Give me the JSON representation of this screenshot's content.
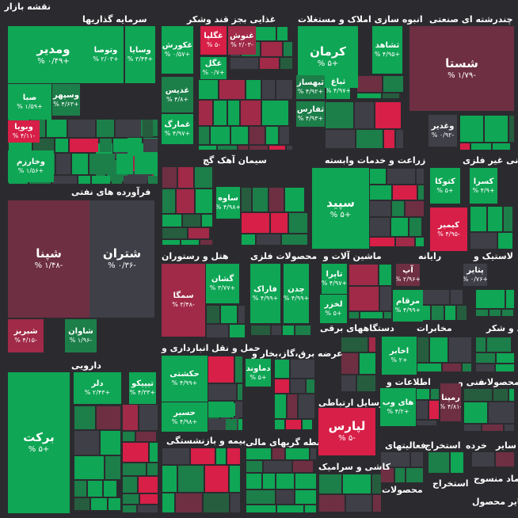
{
  "title": "نقشه بازار",
  "colors": {
    "background": "#2b2b2f",
    "strong_green": "#0fa655",
    "mid_green": "#1c7e49",
    "dark_green": "#255d3e",
    "neutral": "#3f3f47",
    "strong_red": "#d71f47",
    "mid_red": "#a02a47",
    "dark_red": "#6e2f42"
  },
  "sectors": [
    {
      "key": "investment",
      "name": "سرمایه گذاریها"
    },
    {
      "key": "food",
      "name": "غذایی بجز قند وشکر"
    },
    {
      "key": "realestate",
      "name": "انبوه سازی املاک و مستغلات"
    },
    {
      "key": "multi",
      "name": "چندرشته ای صنعتی"
    },
    {
      "key": "oil",
      "name": "فرآورده های نفتی"
    },
    {
      "key": "cement",
      "name": "سیمان آهک گچ"
    },
    {
      "key": "agri",
      "name": "زراعت و خدمات وابسته"
    },
    {
      "key": "nonmetal",
      "name": "کانی غیر فلزی"
    },
    {
      "key": "hotel",
      "name": "هتل و رستوران"
    },
    {
      "key": "metal",
      "name": "محصولات فلزی"
    },
    {
      "key": "machinery",
      "name": "ماشین آلات و"
    },
    {
      "key": "computer",
      "name": "رایانه"
    },
    {
      "key": "rubber",
      "name": "لاستیک و"
    },
    {
      "key": "transport",
      "name": "حمل و نقل انبارداری و"
    },
    {
      "key": "electric",
      "name": "دستگاههای برقی"
    },
    {
      "key": "telecom",
      "name": "مخابرات"
    },
    {
      "key": "sugar",
      "name": "قند و شکر"
    },
    {
      "key": "pharma",
      "name": "دارویی"
    },
    {
      "key": "utility",
      "name": "عرضه برق،گاز،بخار و"
    },
    {
      "key": "info",
      "name": "اطلاعات و"
    },
    {
      "key": "tech",
      "name": "فنی و"
    },
    {
      "key": "products",
      "name": "محصولات"
    },
    {
      "key": "comm",
      "name": "وسایل ارتباطی"
    },
    {
      "key": "insurance",
      "name": "بیمه و بازنشستگی"
    },
    {
      "key": "finance",
      "name": "واسطه گریهای مالی"
    },
    {
      "key": "activities",
      "name": "فعالیتهای"
    },
    {
      "key": "extract",
      "name": "استخراج"
    },
    {
      "key": "retail",
      "name": "خرده"
    },
    {
      "key": "other",
      "name": "سایر"
    },
    {
      "key": "tile",
      "name": "کاشی و سرامیک"
    },
    {
      "key": "products2",
      "name": "محصولات"
    },
    {
      "key": "extract2",
      "name": "استخراج"
    },
    {
      "key": "textile",
      "name": "چاپ پیماد منسوج"
    },
    {
      "key": "sai",
      "name": "کاغذ سایر محصول"
    }
  ],
  "tiles": [
    {
      "name": "ومدیر",
      "pct": "%‎ ۰/۴۹+"
    },
    {
      "name": "وتوصا",
      "pct": "%‎ ۲/۰۳+"
    },
    {
      "name": "وسایا",
      "pct": "%‎ ۳/۴۴+"
    },
    {
      "name": "وسپهر",
      "pct": "%‎ ۴/۶۳+"
    },
    {
      "name": "صبا",
      "pct": "%‎ ۱/۵۹+"
    },
    {
      "name": "وبویا",
      "pct": "%‎ ۴/۱۱-"
    },
    {
      "name": "وخارزم",
      "pct": "%‎ ۱/۵۶+"
    },
    {
      "name": "غکورش",
      "pct": "%‎ ۰/۵۷+"
    },
    {
      "name": "غگلپا",
      "pct": "%‎ ۵-"
    },
    {
      "name": "غنوش",
      "pct": "%‎ ۲/۰۳-"
    },
    {
      "name": "غگل",
      "pct": "%‎ ۰/۷+"
    },
    {
      "name": "غدیس",
      "pct": "%‎ ۴/۸+"
    },
    {
      "name": "غمارگ",
      "pct": "%‎ ۴/۹۷+"
    },
    {
      "name": "کرمان",
      "pct": "%‎ ۵+"
    },
    {
      "name": "ثشاهد",
      "pct": "%‎ ۴/۹۵+"
    },
    {
      "name": "ثباغ",
      "pct": "%‎ ۴/۹۷+"
    },
    {
      "name": "ثبهساز",
      "pct": "%‎ ۴/۹۲+"
    },
    {
      "name": "ثفارس",
      "pct": "%‎ ۴/۹۳+"
    },
    {
      "name": "شستا",
      "pct": "%‎ ۱/۷۹-"
    },
    {
      "name": "وغدیر",
      "pct": "%‎ ۰/۹۲-"
    },
    {
      "name": "شپنا",
      "pct": "%‎ ۱/۴۸-"
    },
    {
      "name": "شتران",
      "pct": "%‎ ۰/۳۶-"
    },
    {
      "name": "شبریز",
      "pct": "%‎ ۴/۱۵-"
    },
    {
      "name": "شاوان",
      "pct": "%‎ ۱/۹۶-"
    },
    {
      "name": "ساوه",
      "pct": "%‎ ۴/۹۸+"
    },
    {
      "name": "سپید",
      "pct": "%‎ ۵+"
    },
    {
      "name": "کتوکا",
      "pct": "%‎ ۵+"
    },
    {
      "name": "کسرا",
      "pct": "%‎ ۴/۹+"
    },
    {
      "name": "کیمیر",
      "pct": "%‎ ۴/۹۵-"
    },
    {
      "name": "سمگا",
      "pct": "%‎ ۳/۴۸-"
    },
    {
      "name": "گشان",
      "pct": "%‎ ۳/۷۷+"
    },
    {
      "name": "فاراک",
      "pct": "%‎ ۴/۹۹+"
    },
    {
      "name": "چدن",
      "pct": "%‎ ۴/۹۹+"
    },
    {
      "name": "تاپرا",
      "pct": "%‎ ۴/۹۷+"
    },
    {
      "name": "لخزر",
      "pct": "%‎ ۵+"
    },
    {
      "name": "آپ",
      "pct": "%‎ ۲/۹۶+"
    },
    {
      "name": "مرقام",
      "pct": "%‎ ۴/۹۹+"
    },
    {
      "name": "پتایر",
      "pct": "%‎ ۰/۷۶+"
    },
    {
      "name": "حکشتی",
      "pct": "%‎ ۴/۹۹+"
    },
    {
      "name": "حسیر",
      "pct": "%‎ ۴/۹۸+"
    },
    {
      "name": "دماوند",
      "pct": "%‎ ۵+"
    },
    {
      "name": "اخابر",
      "pct": "%‎ ۲+"
    },
    {
      "name": "های وب",
      "pct": "%‎ ۴/۲+"
    },
    {
      "name": "رمپنا",
      "pct": "%‎ ۴/۸۱-"
    },
    {
      "name": "برکت",
      "pct": "%‎ ۵+"
    },
    {
      "name": "دلر",
      "pct": "%‎ ۲/۴۳+"
    },
    {
      "name": "تیپیکو",
      "pct": "%‎ ۴/۳۳+"
    },
    {
      "name": "لپارس",
      "pct": "%‎ ۵-"
    }
  ]
}
